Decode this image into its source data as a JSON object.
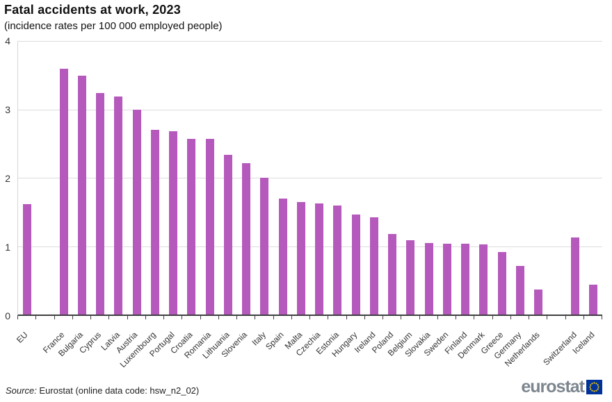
{
  "chart_data": {
    "type": "bar",
    "title": "Fatal accidents at work, 2023",
    "subtitle": "(incidence rates per 100 000 employed people)",
    "xlabel": "",
    "ylabel": "",
    "ylim": [
      0,
      4
    ],
    "yticks": [
      0,
      1,
      2,
      3,
      4
    ],
    "grid": "horizontal",
    "legend": "none",
    "bar_color": "#b55abc",
    "categories": [
      "EU",
      "France",
      "Bulgaria",
      "Cyprus",
      "Latvia",
      "Austria",
      "Luxembourg",
      "Portugal",
      "Croatia",
      "Romania",
      "Lithuania",
      "Slovenia",
      "Italy",
      "Spain",
      "Malta",
      "Czechia",
      "Estonia",
      "Hungary",
      "Ireland",
      "Poland",
      "Belgium",
      "Slovakia",
      "Sweden",
      "Finland",
      "Denmark",
      "Greece",
      "Germany",
      "Netherlands",
      "Switzerland",
      "Iceland"
    ],
    "values": [
      1.61,
      3.59,
      3.49,
      3.24,
      3.19,
      3.0,
      2.7,
      2.68,
      2.57,
      2.57,
      2.34,
      2.21,
      2.0,
      1.7,
      1.64,
      1.62,
      1.59,
      1.46,
      1.42,
      1.18,
      1.09,
      1.05,
      1.04,
      1.04,
      1.03,
      0.91,
      0.71,
      0.37,
      1.13,
      0.44
    ],
    "gap_after": [
      "EU",
      "Netherlands"
    ]
  },
  "footer": {
    "source_label": "Source:",
    "source_text": " Eurostat (online data code: hsw_n2_02)",
    "logo_text": "eurostat",
    "logo_colors": {
      "text": "#7d868f",
      "flag_bg": "#003399",
      "stars": "#ffcc00"
    }
  }
}
